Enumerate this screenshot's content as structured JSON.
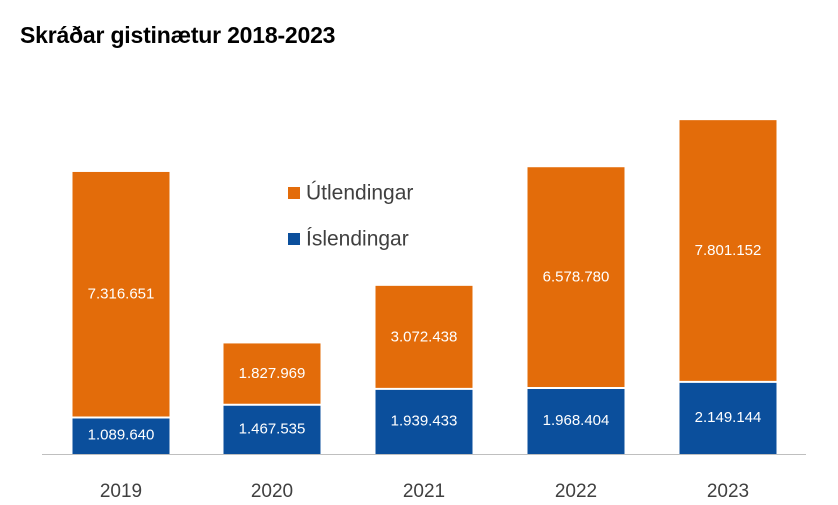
{
  "title": "Skráðar gistinætur 2018-2023",
  "colors": {
    "foreign": "#E36C0A",
    "domestic": "#0B4F9C",
    "axis": "#BFBFBF",
    "text": "#404040"
  },
  "chart_data": {
    "type": "bar",
    "stacked": true,
    "title": "Skráðar gistinætur 2018-2023",
    "categories": [
      "2019",
      "2020",
      "2021",
      "2022",
      "2023"
    ],
    "series": [
      {
        "name": "Íslendingar",
        "color": "#0B4F9C",
        "values": [
          1089640,
          1467535,
          1939433,
          1968404,
          2149144
        ],
        "labels": [
          "1.089.640",
          "1.467.535",
          "1.939.433",
          "1.968.404",
          "2.149.144"
        ]
      },
      {
        "name": "Útlendingar",
        "color": "#E36C0A",
        "values": [
          7316651,
          1827969,
          3072438,
          6578780,
          7801152
        ],
        "labels": [
          "7.316.651",
          "1.827.969",
          "3.072.438",
          "6.578.780",
          "7.801.152"
        ]
      }
    ],
    "legend": {
      "position": "inside-top-left",
      "order": [
        "Útlendingar",
        "Íslendingar"
      ]
    },
    "grid": false,
    "ylim": [
      0,
      10700000
    ]
  }
}
